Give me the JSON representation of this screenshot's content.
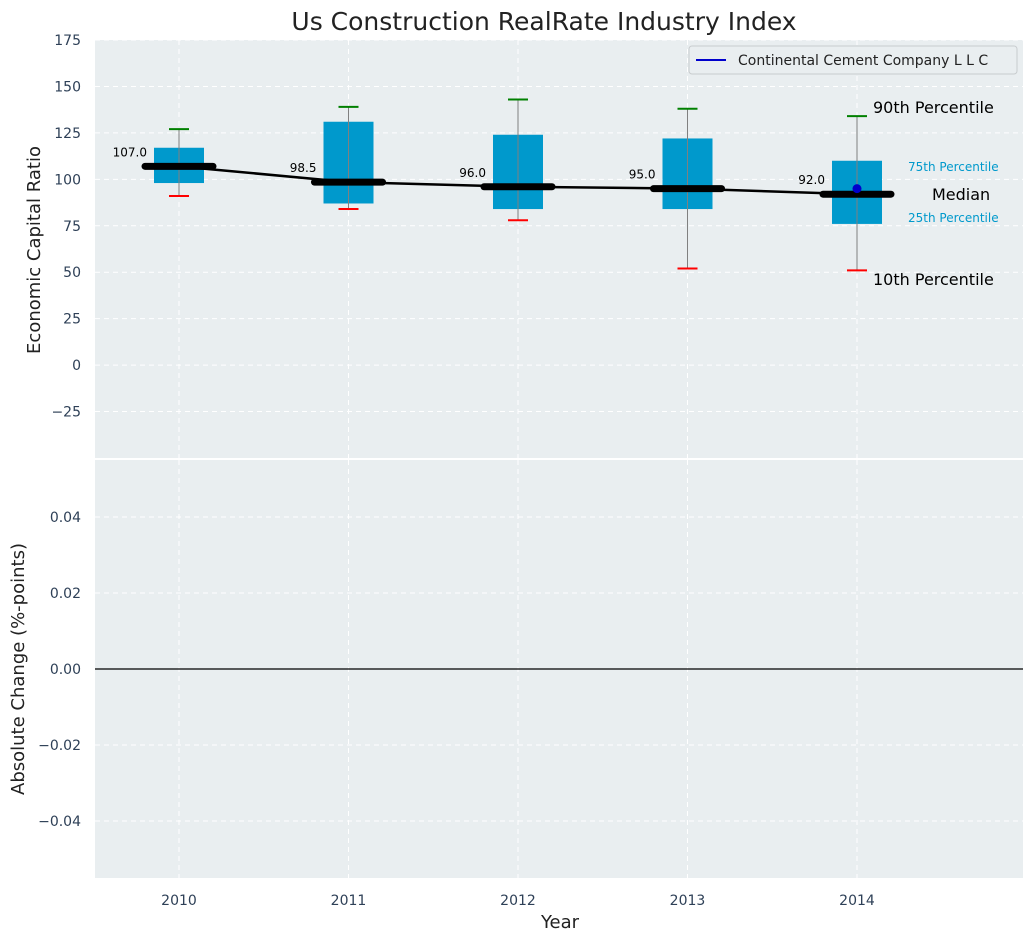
{
  "title": "Us Construction RealRate Industry Index",
  "colors": {
    "panel_bg": "#e9eef0",
    "box": "#0099cc",
    "whisker": "#808080",
    "p90_cap": "#008000",
    "p10_cap": "#ff0000",
    "median": "#000000",
    "company": "#0000cc",
    "zero_line": "#000000"
  },
  "chart_data": [
    {
      "type": "box",
      "ylabel": "Economic Capital Ratio",
      "ylim": [
        -50,
        175
      ],
      "yticks": [
        -25,
        0,
        25,
        50,
        75,
        100,
        125,
        150,
        175
      ],
      "ytick_labels": [
        "−25",
        "0",
        "25",
        "50",
        "75",
        "100",
        "125",
        "150",
        "175"
      ],
      "categories": [
        "2010",
        "2011",
        "2012",
        "2013",
        "2014"
      ],
      "series": [
        {
          "stat": "p10",
          "values": [
            91,
            84,
            78,
            52,
            51
          ]
        },
        {
          "stat": "p25",
          "values": [
            98,
            87,
            84,
            84,
            76
          ]
        },
        {
          "stat": "median",
          "values": [
            107.0,
            98.5,
            96.0,
            95.0,
            92.0
          ]
        },
        {
          "stat": "p75",
          "values": [
            117,
            131,
            124,
            122,
            110
          ]
        },
        {
          "stat": "p90",
          "values": [
            127,
            139,
            143,
            138,
            134
          ]
        }
      ],
      "median_labels": [
        "107.0",
        "98.5",
        "96.0",
        "95.0",
        "92.0"
      ],
      "company": {
        "name": "Continental Cement Company L L C",
        "x": "2014",
        "value": 95
      },
      "annotations": {
        "p90": "90th Percentile",
        "p75": "75th Percentile",
        "median": "Median",
        "p25": "25th Percentile",
        "p10": "10th Percentile"
      },
      "legend": {
        "placement": "top-right",
        "entries": [
          "Continental Cement Company L L C"
        ]
      },
      "grid": true
    },
    {
      "type": "line",
      "ylabel": "Absolute Change (%-points)",
      "xlabel": "Year",
      "ylim": [
        -0.055,
        0.055
      ],
      "yticks": [
        -0.04,
        -0.02,
        0.0,
        0.02,
        0.04
      ],
      "ytick_labels": [
        "−0.04",
        "−0.02",
        "0.00",
        "0.02",
        "0.04"
      ],
      "categories": [
        "2010",
        "2011",
        "2012",
        "2013",
        "2014"
      ],
      "reference_line": 0,
      "grid": true
    }
  ]
}
